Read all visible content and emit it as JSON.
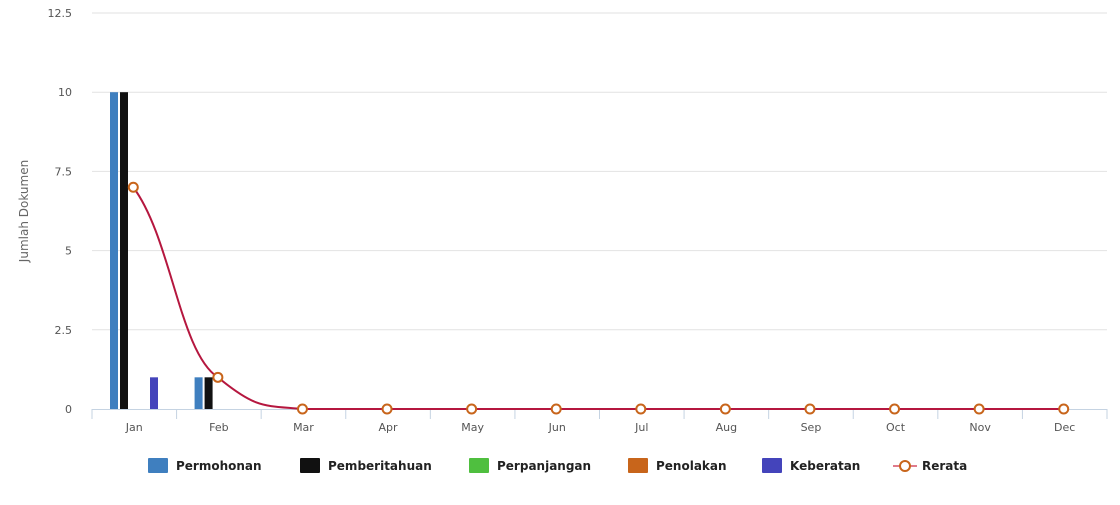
{
  "chart_data": {
    "type": "bar",
    "ylabel": "Jumlah Dokumen",
    "xlabel": "",
    "ylim": [
      0,
      12.5
    ],
    "yticks": [
      "0",
      "2.5",
      "5",
      "7.5",
      "10",
      "12.5"
    ],
    "grid": true,
    "legend_position": "bottom",
    "categories": [
      "Jan",
      "Feb",
      "Mar",
      "Apr",
      "May",
      "Jun",
      "Jul",
      "Aug",
      "Sep",
      "Oct",
      "Nov",
      "Dec"
    ],
    "series": [
      {
        "name": "Permohonan",
        "type": "bar",
        "color": "#3f7fbf",
        "values": [
          10,
          1,
          0,
          0,
          0,
          0,
          0,
          0,
          0,
          0,
          0,
          0
        ]
      },
      {
        "name": "Pemberitahuan",
        "type": "bar",
        "color": "#111111",
        "values": [
          10,
          1,
          0,
          0,
          0,
          0,
          0,
          0,
          0,
          0,
          0,
          0
        ]
      },
      {
        "name": "Perpanjangan",
        "type": "bar",
        "color": "#4fbf3f",
        "values": [
          0,
          0,
          0,
          0,
          0,
          0,
          0,
          0,
          0,
          0,
          0,
          0
        ]
      },
      {
        "name": "Penolakan",
        "type": "bar",
        "color": "#c8651b",
        "values": [
          0,
          0,
          0,
          0,
          0,
          0,
          0,
          0,
          0,
          0,
          0,
          0
        ]
      },
      {
        "name": "Keberatan",
        "type": "bar",
        "color": "#4444bb",
        "values": [
          1,
          0,
          0,
          0,
          0,
          0,
          0,
          0,
          0,
          0,
          0,
          0
        ]
      },
      {
        "name": "Rerata",
        "type": "line",
        "color": "#b5173f",
        "marker_color": "#c8651b",
        "values": [
          7,
          1,
          0,
          0,
          0,
          0,
          0,
          0,
          0,
          0,
          0,
          0
        ]
      }
    ]
  }
}
